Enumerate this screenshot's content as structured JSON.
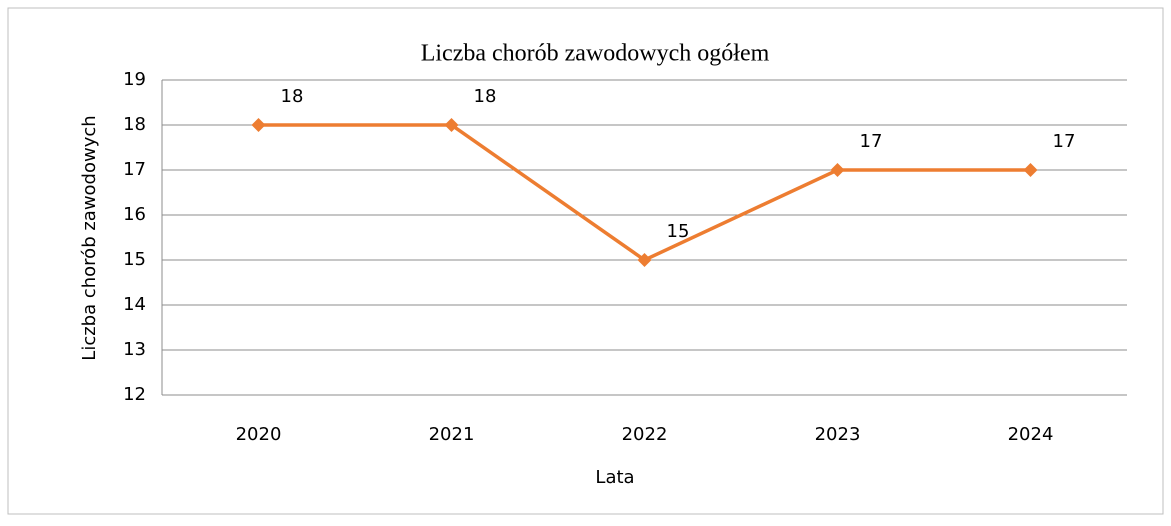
{
  "chart_data": {
    "type": "line",
    "title": "Liczba chorób zawodowych ogółem",
    "xlabel": "Lata",
    "ylabel": "Liczba chorób zawodowych",
    "categories": [
      "2020",
      "2021",
      "2022",
      "2023",
      "2024"
    ],
    "series": [
      {
        "name": "Liczba chorób zawodowych",
        "color": "#ed7d31",
        "values": [
          18,
          18,
          15,
          17,
          17
        ]
      }
    ],
    "ylim": [
      12,
      19
    ],
    "yticks": [
      12,
      13,
      14,
      15,
      16,
      17,
      18,
      19
    ],
    "grid": true
  }
}
